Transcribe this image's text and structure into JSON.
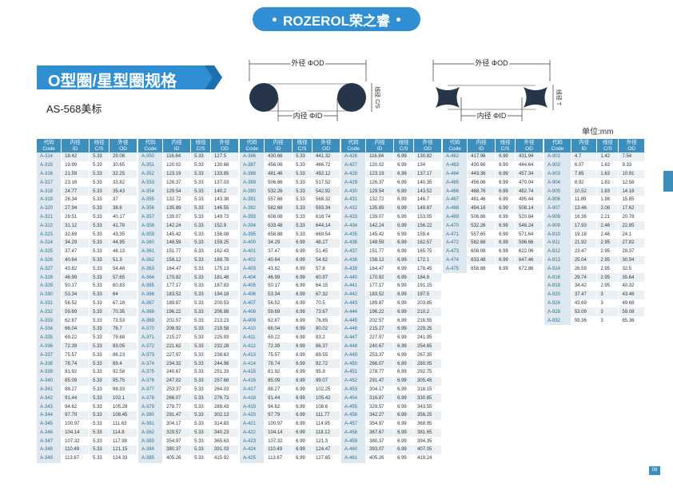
{
  "header": {
    "brand": "ROZEROL荣之睿"
  },
  "title": "O型圈/星型圈规格",
  "subtitle": "AS-568美标",
  "unit": "单位:mm",
  "page_number": "08",
  "diagrams": [
    {
      "od": "外径 ΦOD",
      "id": "内径 ΦID",
      "cs": "线径 C/S"
    },
    {
      "od": "外径 ΦOD",
      "id": "内径 ΦID",
      "cs": "线径 T"
    }
  ],
  "columns": [
    {
      "zh": "代码",
      "en": "Code"
    },
    {
      "zh": "内径",
      "en": "ID"
    },
    {
      "zh": "线径",
      "en": "C/S"
    },
    {
      "zh": "外径",
      "en": "OD"
    }
  ],
  "tables": [
    {
      "rows": [
        [
          "A-314",
          "18.42",
          "5.33",
          "29.08"
        ],
        [
          "A-315",
          "19.99",
          "5.33",
          "30.65"
        ],
        [
          "A-316",
          "21.59",
          "5.33",
          "32.25"
        ],
        [
          "A-317",
          "23.16",
          "5.33",
          "33.82"
        ],
        [
          "A-318",
          "24.77",
          "5.33",
          "35.43"
        ],
        [
          "A-319",
          "26.34",
          "5.33",
          "37"
        ],
        [
          "A-320",
          "27.94",
          "5.33",
          "38.6"
        ],
        [
          "A-321",
          "29.51",
          "5.33",
          "40.17"
        ],
        [
          "A-322",
          "31.12",
          "5.33",
          "41.78"
        ],
        [
          "A-323",
          "32.69",
          "5.33",
          "43.35"
        ],
        [
          "A-324",
          "34.29",
          "5.33",
          "44.95"
        ],
        [
          "A-325",
          "37.47",
          "5.33",
          "48.13"
        ],
        [
          "A-326",
          "40.64",
          "5.33",
          "51.3"
        ],
        [
          "A-327",
          "43.82",
          "5.33",
          "54.48"
        ],
        [
          "A-328",
          "46.99",
          "5.33",
          "57.65"
        ],
        [
          "A-329",
          "50.17",
          "5.33",
          "60.83"
        ],
        [
          "A-330",
          "53.34",
          "5.33",
          "64"
        ],
        [
          "A-331",
          "56.52",
          "5.33",
          "67.18"
        ],
        [
          "A-332",
          "59.69",
          "5.33",
          "70.35"
        ],
        [
          "A-333",
          "62.87",
          "5.33",
          "73.53"
        ],
        [
          "A-334",
          "66.04",
          "5.33",
          "76.7"
        ],
        [
          "A-335",
          "69.22",
          "5.33",
          "79.88"
        ],
        [
          "A-336",
          "72.39",
          "5.33",
          "83.05"
        ],
        [
          "A-337",
          "75.57",
          "5.33",
          "86.23"
        ],
        [
          "A-338",
          "78.74",
          "5.33",
          "89.4"
        ],
        [
          "A-339",
          "81.92",
          "5.33",
          "92.58"
        ],
        [
          "A-340",
          "85.09",
          "5.33",
          "95.75"
        ],
        [
          "A-341",
          "88.27",
          "5.33",
          "98.93"
        ],
        [
          "A-342",
          "91.44",
          "5.33",
          "102.1"
        ],
        [
          "A-343",
          "94.62",
          "5.33",
          "105.28"
        ],
        [
          "A-344",
          "97.79",
          "5.33",
          "108.45"
        ],
        [
          "A-345",
          "100.97",
          "5.33",
          "111.63"
        ],
        [
          "A-346",
          "104.14",
          "5.33",
          "114.8"
        ],
        [
          "A-347",
          "107.32",
          "5.33",
          "117.98"
        ],
        [
          "A-348",
          "110.49",
          "5.33",
          "121.15"
        ],
        [
          "A-349",
          "113.67",
          "5.33",
          "124.33"
        ]
      ]
    },
    {
      "rows": [
        [
          "A-350",
          "116.84",
          "5.33",
          "127.5"
        ],
        [
          "A-351",
          "120.02",
          "5.33",
          "130.68"
        ],
        [
          "A-352",
          "123.19",
          "5.33",
          "133.85"
        ],
        [
          "A-353",
          "126.37",
          "5.33",
          "137.03"
        ],
        [
          "A-354",
          "129.54",
          "5.33",
          "140.2"
        ],
        [
          "A-355",
          "132.72",
          "5.33",
          "143.38"
        ],
        [
          "A-356",
          "135.89",
          "5.33",
          "146.55"
        ],
        [
          "A-357",
          "139.07",
          "5.33",
          "149.73"
        ],
        [
          "A-358",
          "142.24",
          "5.33",
          "152.9"
        ],
        [
          "A-359",
          "145.42",
          "5.33",
          "156.08"
        ],
        [
          "A-360",
          "148.59",
          "5.33",
          "159.25"
        ],
        [
          "A-361",
          "151.77",
          "5.33",
          "162.43"
        ],
        [
          "A-362",
          "158.12",
          "5.33",
          "168.78"
        ],
        [
          "A-363",
          "164.47",
          "5.33",
          "175.13"
        ],
        [
          "A-364",
          "170.82",
          "5.33",
          "181.48"
        ],
        [
          "A-365",
          "177.17",
          "5.33",
          "187.83"
        ],
        [
          "A-366",
          "183.52",
          "5.33",
          "194.18"
        ],
        [
          "A-367",
          "189.87",
          "5.33",
          "200.53"
        ],
        [
          "A-368",
          "196.22",
          "5.33",
          "206.88"
        ],
        [
          "A-369",
          "202.57",
          "5.33",
          "213.23"
        ],
        [
          "A-370",
          "208.92",
          "5.33",
          "219.58"
        ],
        [
          "A-371",
          "215.27",
          "5.33",
          "225.93"
        ],
        [
          "A-372",
          "221.62",
          "5.33",
          "232.28"
        ],
        [
          "A-373",
          "227.97",
          "5.33",
          "238.63"
        ],
        [
          "A-374",
          "234.32",
          "5.33",
          "244.98"
        ],
        [
          "A-375",
          "240.67",
          "5.33",
          "251.33"
        ],
        [
          "A-376",
          "247.02",
          "5.33",
          "257.68"
        ],
        [
          "A-377",
          "253.37",
          "5.33",
          "264.03"
        ],
        [
          "A-378",
          "266.07",
          "5.33",
          "276.73"
        ],
        [
          "A-379",
          "278.77",
          "5.33",
          "289.43"
        ],
        [
          "A-380",
          "291.47",
          "5.33",
          "302.13"
        ],
        [
          "A-381",
          "304.17",
          "5.33",
          "314.83"
        ],
        [
          "A-382",
          "329.57",
          "5.33",
          "340.23"
        ],
        [
          "A-383",
          "354.97",
          "5.33",
          "365.63"
        ],
        [
          "A-384",
          "380.37",
          "5.33",
          "391.03"
        ],
        [
          "A-385",
          "405.26",
          "5.33",
          "415.92"
        ]
      ]
    },
    {
      "rows": [
        [
          "A-386",
          "430.66",
          "5.33",
          "441.32"
        ],
        [
          "A-387",
          "456.06",
          "5.33",
          "466.72"
        ],
        [
          "A-388",
          "481.46",
          "5.33",
          "492.12"
        ],
        [
          "A-389",
          "506.86",
          "5.33",
          "517.52"
        ],
        [
          "A-390",
          "532.26",
          "5.33",
          "542.92"
        ],
        [
          "A-391",
          "557.66",
          "5.33",
          "568.32"
        ],
        [
          "A-392",
          "582.68",
          "5.33",
          "593.34"
        ],
        [
          "A-393",
          "608.08",
          "5.33",
          "618.74"
        ],
        [
          "A-394",
          "633.48",
          "5.33",
          "644.14"
        ],
        [
          "A-395",
          "658.88",
          "5.33",
          "669.54"
        ],
        [
          "A-400",
          "34.29",
          "6.99",
          "48.27"
        ],
        [
          "A-401",
          "37.47",
          "6.99",
          "51.45"
        ],
        [
          "A-402",
          "40.64",
          "6.99",
          "54.62"
        ],
        [
          "A-403",
          "43.82",
          "6.99",
          "57.8"
        ],
        [
          "A-404",
          "46.99",
          "6.99",
          "60.97"
        ],
        [
          "A-405",
          "50.17",
          "6.99",
          "64.15"
        ],
        [
          "A-406",
          "53.34",
          "6.99",
          "67.32"
        ],
        [
          "A-407",
          "56.52",
          "6.99",
          "70.5"
        ],
        [
          "A-408",
          "59.69",
          "6.99",
          "73.67"
        ],
        [
          "A-409",
          "62.87",
          "6.99",
          "76.85"
        ],
        [
          "A-410",
          "66.04",
          "6.99",
          "80.02"
        ],
        [
          "A-411",
          "69.22",
          "6.99",
          "83.2"
        ],
        [
          "A-412",
          "72.39",
          "6.99",
          "86.37"
        ],
        [
          "A-413",
          "75.57",
          "6.99",
          "89.55"
        ],
        [
          "A-414",
          "78.74",
          "6.99",
          "92.72"
        ],
        [
          "A-415",
          "81.92",
          "6.99",
          "95.9"
        ],
        [
          "A-416",
          "85.09",
          "6.99",
          "99.07"
        ],
        [
          "A-417",
          "88.27",
          "6.99",
          "102.25"
        ],
        [
          "A-418",
          "91.44",
          "6.99",
          "105.42"
        ],
        [
          "A-419",
          "94.62",
          "6.99",
          "108.6"
        ],
        [
          "A-420",
          "97.79",
          "6.99",
          "111.77"
        ],
        [
          "A-421",
          "100.97",
          "6.99",
          "114.95"
        ],
        [
          "A-422",
          "104.14",
          "6.99",
          "118.12"
        ],
        [
          "A-423",
          "107.32",
          "6.99",
          "121.3"
        ],
        [
          "A-424",
          "110.49",
          "6.99",
          "124.47"
        ],
        [
          "A-425",
          "113.67",
          "6.99",
          "127.65"
        ]
      ]
    },
    {
      "rows": [
        [
          "A-426",
          "116.84",
          "6.99",
          "130.82"
        ],
        [
          "A-427",
          "120.02",
          "6.99",
          "134"
        ],
        [
          "A-428",
          "123.19",
          "6.99",
          "137.17"
        ],
        [
          "A-429",
          "126.37",
          "6.99",
          "140.35"
        ],
        [
          "A-430",
          "129.54",
          "6.99",
          "143.52"
        ],
        [
          "A-431",
          "132.72",
          "6.99",
          "146.7"
        ],
        [
          "A-432",
          "135.89",
          "6.99",
          "149.87"
        ],
        [
          "A-433",
          "139.07",
          "6.99",
          "153.05"
        ],
        [
          "A-434",
          "142.24",
          "6.99",
          "156.22"
        ],
        [
          "A-435",
          "145.42",
          "6.99",
          "159.4"
        ],
        [
          "A-436",
          "148.59",
          "6.99",
          "162.57"
        ],
        [
          "A-437",
          "151.77",
          "6.99",
          "165.75"
        ],
        [
          "A-438",
          "158.12",
          "6.99",
          "172.1"
        ],
        [
          "A-439",
          "164.47",
          "6.99",
          "178.45"
        ],
        [
          "A-440",
          "170.82",
          "6.99",
          "184.8"
        ],
        [
          "A-441",
          "177.17",
          "6.99",
          "191.15"
        ],
        [
          "A-442",
          "183.52",
          "6.99",
          "197.5"
        ],
        [
          "A-443",
          "189.87",
          "6.99",
          "203.85"
        ],
        [
          "A-444",
          "196.22",
          "6.99",
          "210.2"
        ],
        [
          "A-445",
          "202.57",
          "6.99",
          "216.55"
        ],
        [
          "A-446",
          "215.27",
          "6.99",
          "229.25"
        ],
        [
          "A-447",
          "227.97",
          "6.99",
          "241.95"
        ],
        [
          "A-448",
          "240.67",
          "6.99",
          "254.65"
        ],
        [
          "A-449",
          "253.37",
          "6.99",
          "267.35"
        ],
        [
          "A-450",
          "266.07",
          "6.99",
          "280.05"
        ],
        [
          "A-451",
          "278.77",
          "6.99",
          "292.75"
        ],
        [
          "A-452",
          "291.47",
          "6.99",
          "305.45"
        ],
        [
          "A-453",
          "304.17",
          "6.99",
          "318.15"
        ],
        [
          "A-454",
          "316.87",
          "6.99",
          "330.85"
        ],
        [
          "A-455",
          "329.57",
          "6.99",
          "343.55"
        ],
        [
          "A-456",
          "342.27",
          "6.99",
          "356.25"
        ],
        [
          "A-457",
          "354.97",
          "6.99",
          "368.95"
        ],
        [
          "A-458",
          "367.67",
          "6.99",
          "381.65"
        ],
        [
          "A-459",
          "380.37",
          "6.99",
          "394.35"
        ],
        [
          "A-460",
          "393.07",
          "6.99",
          "407.05"
        ],
        [
          "A-461",
          "405.26",
          "6.99",
          "419.24"
        ]
      ]
    },
    {
      "rows": [
        [
          "A-462",
          "417.96",
          "6.99",
          "431.94"
        ],
        [
          "A-463",
          "430.66",
          "6.99",
          "444.64"
        ],
        [
          "A-464",
          "443.36",
          "6.99",
          "457.34"
        ],
        [
          "A-465",
          "456.06",
          "6.99",
          "470.04"
        ],
        [
          "A-466",
          "468.76",
          "6.99",
          "482.74"
        ],
        [
          "A-467",
          "481.46",
          "6.99",
          "495.44"
        ],
        [
          "A-468",
          "494.16",
          "6.99",
          "508.14"
        ],
        [
          "A-469",
          "506.86",
          "6.99",
          "520.84"
        ],
        [
          "A-470",
          "532.26",
          "6.99",
          "546.24"
        ],
        [
          "A-471",
          "557.65",
          "6.99",
          "571.64"
        ],
        [
          "A-472",
          "582.68",
          "6.99",
          "596.66"
        ],
        [
          "A-473",
          "608.08",
          "6.99",
          "622.06"
        ],
        [
          "A-474",
          "633.48",
          "6.99",
          "647.46"
        ],
        [
          "A-475",
          "658.88",
          "6.99",
          "672.86"
        ]
      ]
    },
    {
      "rows": [
        [
          "A-901",
          "4.7",
          "1.42",
          "7.54"
        ],
        [
          "A-902",
          "6.07",
          "1.63",
          "9.33"
        ],
        [
          "A-903",
          "7.65",
          "1.63",
          "10.91"
        ],
        [
          "A-904",
          "8.92",
          "1.83",
          "12.58"
        ],
        [
          "A-905",
          "10.52",
          "1.83",
          "14.18"
        ],
        [
          "A-906",
          "11.89",
          "1.98",
          "15.85"
        ],
        [
          "A-907",
          "13.46",
          "2.08",
          "17.62"
        ],
        [
          "A-908",
          "16.36",
          "2.21",
          "20.78"
        ],
        [
          "A-909",
          "17.93",
          "2.46",
          "22.85"
        ],
        [
          "A-910",
          "19.18",
          "2.46",
          "24.1"
        ],
        [
          "A-911",
          "21.92",
          "2.95",
          "27.82"
        ],
        [
          "A-912",
          "23.47",
          "2.95",
          "29.37"
        ],
        [
          "A-913",
          "25.04",
          "2.95",
          "30.94"
        ],
        [
          "A-914",
          "26.59",
          "2.95",
          "32.5"
        ],
        [
          "A-916",
          "29.74",
          "2.95",
          "35.64"
        ],
        [
          "A-918",
          "34.42",
          "2.95",
          "40.32"
        ],
        [
          "A-920",
          "37.47",
          "3",
          "43.46"
        ],
        [
          "A-924",
          "43.69",
          "3",
          "49.68"
        ],
        [
          "A-928",
          "53.09",
          "3",
          "59.08"
        ],
        [
          "A-932",
          "59.36",
          "3",
          "65.36"
        ]
      ]
    }
  ]
}
